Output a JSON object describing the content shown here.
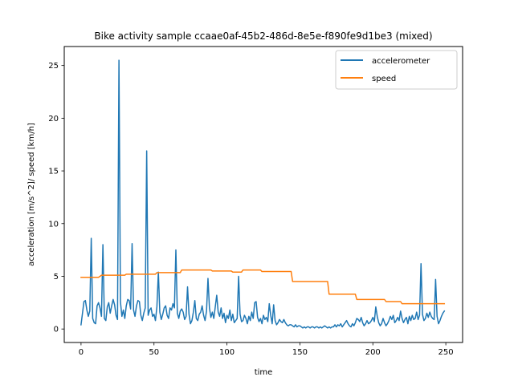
{
  "chart_data": {
    "type": "line",
    "title": "Bike activity sample ccaae0af-45b2-486d-8e5e-f890fe9d1be3 (mixed)",
    "xlabel": "time",
    "ylabel": "acceleration [m/s^2]/ speed [km/h]",
    "xlim": [
      -11.5,
      261.5
    ],
    "ylim": [
      -1.28,
      26.8
    ],
    "xticks": [
      0,
      50,
      100,
      150,
      200,
      250
    ],
    "yticks": [
      0,
      5,
      10,
      15,
      20,
      25
    ],
    "grid": false,
    "legend": {
      "position": "top-right"
    },
    "series": [
      {
        "name": "accelerometer",
        "color": "#1f77b4",
        "points": [
          [
            0,
            0.4
          ],
          [
            1,
            1.5
          ],
          [
            2,
            2.6
          ],
          [
            3,
            2.7
          ],
          [
            4,
            1.8
          ],
          [
            5,
            1.2
          ],
          [
            6,
            1.7
          ],
          [
            7,
            8.6
          ],
          [
            8,
            1.0
          ],
          [
            9,
            0.6
          ],
          [
            10,
            0.5
          ],
          [
            11,
            2.2
          ],
          [
            12,
            2.5
          ],
          [
            13,
            2.0
          ],
          [
            14,
            1.2
          ],
          [
            15,
            8.0
          ],
          [
            16,
            1.0
          ],
          [
            17,
            0.8
          ],
          [
            18,
            2.1
          ],
          [
            19,
            2.5
          ],
          [
            20,
            1.5
          ],
          [
            21,
            2.2
          ],
          [
            22,
            2.8
          ],
          [
            23,
            2.3
          ],
          [
            24,
            1.3
          ],
          [
            25,
            0.9
          ],
          [
            26,
            25.5
          ],
          [
            27,
            2.6
          ],
          [
            28,
            1.2
          ],
          [
            29,
            1.8
          ],
          [
            30,
            1.0
          ],
          [
            31,
            2.2
          ],
          [
            32,
            2.8
          ],
          [
            33,
            2.7
          ],
          [
            34,
            1.9
          ],
          [
            35,
            8.1
          ],
          [
            36,
            1.8
          ],
          [
            37,
            1.2
          ],
          [
            38,
            2.2
          ],
          [
            39,
            2.7
          ],
          [
            40,
            2.6
          ],
          [
            41,
            1.3
          ],
          [
            42,
            0.8
          ],
          [
            43,
            1.5
          ],
          [
            44,
            2.0
          ],
          [
            45,
            16.9
          ],
          [
            46,
            1.3
          ],
          [
            47,
            1.8
          ],
          [
            48,
            2.0
          ],
          [
            49,
            1.2
          ],
          [
            50,
            1.4
          ],
          [
            51,
            0.8
          ],
          [
            52,
            2.1
          ],
          [
            53,
            5.4
          ],
          [
            54,
            1.6
          ],
          [
            55,
            0.9
          ],
          [
            56,
            1.4
          ],
          [
            57,
            2.0
          ],
          [
            58,
            2.2
          ],
          [
            59,
            1.3
          ],
          [
            60,
            1.0
          ],
          [
            61,
            2.0
          ],
          [
            62,
            1.8
          ],
          [
            63,
            2.4
          ],
          [
            64,
            2.0
          ],
          [
            65,
            7.5
          ],
          [
            66,
            1.5
          ],
          [
            67,
            1.0
          ],
          [
            68,
            1.7
          ],
          [
            69,
            1.9
          ],
          [
            70,
            1.6
          ],
          [
            71,
            0.9
          ],
          [
            72,
            1.2
          ],
          [
            73,
            4.0
          ],
          [
            74,
            1.4
          ],
          [
            75,
            0.5
          ],
          [
            76,
            0.8
          ],
          [
            77,
            1.6
          ],
          [
            78,
            2.7
          ],
          [
            79,
            1.0
          ],
          [
            80,
            0.8
          ],
          [
            81,
            1.4
          ],
          [
            82,
            1.6
          ],
          [
            83,
            2.2
          ],
          [
            84,
            1.3
          ],
          [
            85,
            0.8
          ],
          [
            86,
            1.7
          ],
          [
            87,
            4.8
          ],
          [
            88,
            2.0
          ],
          [
            89,
            1.1
          ],
          [
            90,
            1.6
          ],
          [
            91,
            1.0
          ],
          [
            92,
            2.1
          ],
          [
            93,
            3.2
          ],
          [
            94,
            1.6
          ],
          [
            95,
            1.2
          ],
          [
            96,
            2.0
          ],
          [
            97,
            1.0
          ],
          [
            98,
            1.5
          ],
          [
            99,
            0.6
          ],
          [
            100,
            1.3
          ],
          [
            101,
            1.0
          ],
          [
            102,
            1.8
          ],
          [
            103,
            0.8
          ],
          [
            104,
            1.4
          ],
          [
            105,
            0.6
          ],
          [
            106,
            0.8
          ],
          [
            107,
            1.0
          ],
          [
            108,
            5.0
          ],
          [
            109,
            1.4
          ],
          [
            110,
            0.7
          ],
          [
            111,
            0.8
          ],
          [
            112,
            1.3
          ],
          [
            113,
            1.0
          ],
          [
            114,
            0.5
          ],
          [
            115,
            1.2
          ],
          [
            116,
            0.8
          ],
          [
            117,
            1.6
          ],
          [
            118,
            1.0
          ],
          [
            119,
            2.5
          ],
          [
            120,
            2.6
          ],
          [
            121,
            1.1
          ],
          [
            122,
            0.7
          ],
          [
            123,
            1.0
          ],
          [
            124,
            0.5
          ],
          [
            125,
            1.3
          ],
          [
            126,
            0.9
          ],
          [
            127,
            1.1
          ],
          [
            128,
            0.7
          ],
          [
            129,
            2.4
          ],
          [
            130,
            1.3
          ],
          [
            131,
            0.5
          ],
          [
            132,
            2.3
          ],
          [
            133,
            0.8
          ],
          [
            134,
            0.4
          ],
          [
            135,
            0.6
          ],
          [
            136,
            0.9
          ],
          [
            137,
            0.7
          ],
          [
            138,
            0.6
          ],
          [
            139,
            0.9
          ],
          [
            140,
            0.6
          ],
          [
            141,
            0.4
          ],
          [
            142,
            0.3
          ],
          [
            143,
            0.4
          ],
          [
            144,
            0.4
          ],
          [
            145,
            0.3
          ],
          [
            146,
            0.2
          ],
          [
            147,
            0.4
          ],
          [
            148,
            0.2
          ],
          [
            149,
            0.3
          ],
          [
            150,
            0.3
          ],
          [
            151,
            0.2
          ],
          [
            152,
            0.1
          ],
          [
            153,
            0.2
          ],
          [
            154,
            0.1
          ],
          [
            155,
            0.2
          ],
          [
            156,
            0.2
          ],
          [
            157,
            0.1
          ],
          [
            158,
            0.2
          ],
          [
            159,
            0.2
          ],
          [
            160,
            0.1
          ],
          [
            161,
            0.2
          ],
          [
            162,
            0.2
          ],
          [
            163,
            0.1
          ],
          [
            164,
            0.2
          ],
          [
            165,
            0.1
          ],
          [
            166,
            0.2
          ],
          [
            167,
            0.3
          ],
          [
            168,
            0.2
          ],
          [
            169,
            0.1
          ],
          [
            170,
            0.2
          ],
          [
            171,
            0.1
          ],
          [
            172,
            0.2
          ],
          [
            173,
            0.2
          ],
          [
            174,
            0.4
          ],
          [
            175,
            0.2
          ],
          [
            176,
            0.4
          ],
          [
            177,
            0.3
          ],
          [
            178,
            0.5
          ],
          [
            179,
            0.2
          ],
          [
            180,
            0.4
          ],
          [
            181,
            0.6
          ],
          [
            182,
            0.8
          ],
          [
            183,
            0.5
          ],
          [
            184,
            0.3
          ],
          [
            185,
            0.2
          ],
          [
            186,
            0.5
          ],
          [
            187,
            0.3
          ],
          [
            188,
            0.6
          ],
          [
            189,
            1.0
          ],
          [
            190,
            0.9
          ],
          [
            191,
            0.7
          ],
          [
            192,
            1.1
          ],
          [
            193,
            0.6
          ],
          [
            194,
            0.3
          ],
          [
            195,
            0.5
          ],
          [
            196,
            0.8
          ],
          [
            197,
            0.5
          ],
          [
            198,
            0.6
          ],
          [
            199,
            0.8
          ],
          [
            200,
            1.1
          ],
          [
            201,
            0.7
          ],
          [
            202,
            2.1
          ],
          [
            203,
            1.2
          ],
          [
            204,
            0.6
          ],
          [
            205,
            0.3
          ],
          [
            206,
            0.5
          ],
          [
            207,
            1.0
          ],
          [
            208,
            0.6
          ],
          [
            209,
            0.3
          ],
          [
            210,
            0.5
          ],
          [
            211,
            0.8
          ],
          [
            212,
            1.2
          ],
          [
            213,
            0.9
          ],
          [
            214,
            1.3
          ],
          [
            215,
            0.6
          ],
          [
            216,
            0.8
          ],
          [
            217,
            1.1
          ],
          [
            218,
            0.8
          ],
          [
            219,
            1.7
          ],
          [
            220,
            1.0
          ],
          [
            221,
            0.6
          ],
          [
            222,
            0.9
          ],
          [
            223,
            1.1
          ],
          [
            224,
            0.5
          ],
          [
            225,
            1.2
          ],
          [
            226,
            0.8
          ],
          [
            227,
            1.3
          ],
          [
            228,
            0.9
          ],
          [
            229,
            1.0
          ],
          [
            230,
            1.6
          ],
          [
            231,
            0.9
          ],
          [
            232,
            1.3
          ],
          [
            233,
            6.2
          ],
          [
            234,
            1.4
          ],
          [
            235,
            0.8
          ],
          [
            236,
            1.0
          ],
          [
            237,
            1.5
          ],
          [
            238,
            1.1
          ],
          [
            239,
            1.6
          ],
          [
            240,
            1.2
          ],
          [
            241,
            1.0
          ],
          [
            242,
            0.9
          ],
          [
            243,
            4.7
          ],
          [
            244,
            1.2
          ],
          [
            245,
            0.5
          ],
          [
            246,
            0.8
          ],
          [
            247,
            1.2
          ],
          [
            248,
            1.5
          ],
          [
            249,
            1.7
          ]
        ]
      },
      {
        "name": "speed",
        "color": "#ff7f0e",
        "points": [
          [
            0,
            4.9
          ],
          [
            12,
            4.9
          ],
          [
            13,
            5.0
          ],
          [
            14,
            5.1
          ],
          [
            30,
            5.1
          ],
          [
            31,
            5.2
          ],
          [
            51,
            5.2
          ],
          [
            52,
            5.35
          ],
          [
            68,
            5.35
          ],
          [
            69,
            5.6
          ],
          [
            89,
            5.6
          ],
          [
            90,
            5.5
          ],
          [
            103,
            5.5
          ],
          [
            104,
            5.4
          ],
          [
            110,
            5.4
          ],
          [
            111,
            5.6
          ],
          [
            123,
            5.6
          ],
          [
            124,
            5.45
          ],
          [
            144,
            5.45
          ],
          [
            145,
            4.5
          ],
          [
            169,
            4.5
          ],
          [
            170,
            3.3
          ],
          [
            188,
            3.3
          ],
          [
            189,
            2.8
          ],
          [
            208,
            2.8
          ],
          [
            209,
            2.6
          ],
          [
            219,
            2.6
          ],
          [
            220,
            2.4
          ],
          [
            249,
            2.4
          ]
        ]
      }
    ]
  }
}
